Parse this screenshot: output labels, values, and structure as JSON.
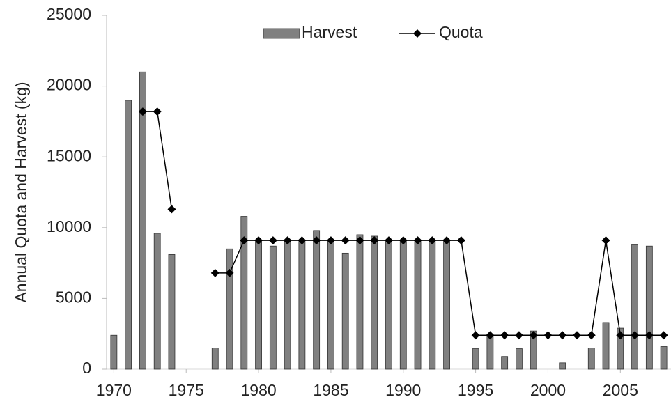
{
  "chart_data": {
    "type": "bar_line",
    "y_label": "Annual Quota and Harvest (kg)",
    "x": [
      1970,
      1971,
      1972,
      1973,
      1974,
      1975,
      1976,
      1977,
      1978,
      1979,
      1980,
      1981,
      1982,
      1983,
      1984,
      1985,
      1986,
      1987,
      1988,
      1989,
      1990,
      1991,
      1992,
      1993,
      1994,
      1995,
      1996,
      1997,
      1998,
      1999,
      2000,
      2001,
      2002,
      2003,
      2004,
      2005,
      2006,
      2007,
      2008
    ],
    "series": [
      {
        "name": "Harvest",
        "type": "bar",
        "color": "#808080",
        "values": [
          2400,
          19000,
          21000,
          9600,
          8100,
          null,
          null,
          1500,
          8500,
          10800,
          9000,
          8700,
          9000,
          9000,
          9800,
          9000,
          8200,
          9500,
          9400,
          9000,
          9000,
          9000,
          9000,
          9000,
          null,
          1450,
          2300,
          900,
          1450,
          2700,
          null,
          450,
          null,
          1500,
          3300,
          2900,
          8800,
          8700,
          1600
        ]
      },
      {
        "name": "Quota",
        "type": "line",
        "color": "#000000",
        "values": [
          null,
          null,
          18200,
          18200,
          11300,
          null,
          null,
          6800,
          6800,
          9100,
          9100,
          9100,
          9100,
          9100,
          9100,
          9100,
          9100,
          9100,
          9100,
          9100,
          9100,
          9100,
          9100,
          9100,
          9100,
          2400,
          2400,
          2400,
          2400,
          2400,
          2400,
          2400,
          2400,
          2400,
          9100,
          2400,
          2400,
          2400,
          2400
        ]
      }
    ],
    "xlim": [
      1969.5,
      2008.5
    ],
    "xticks": [
      1970,
      1975,
      1980,
      1985,
      1990,
      1995,
      2000,
      2005
    ],
    "ylim": [
      0,
      25000
    ],
    "yticks": [
      0,
      5000,
      10000,
      15000,
      20000,
      25000
    ],
    "grid": false,
    "legend": "top"
  }
}
